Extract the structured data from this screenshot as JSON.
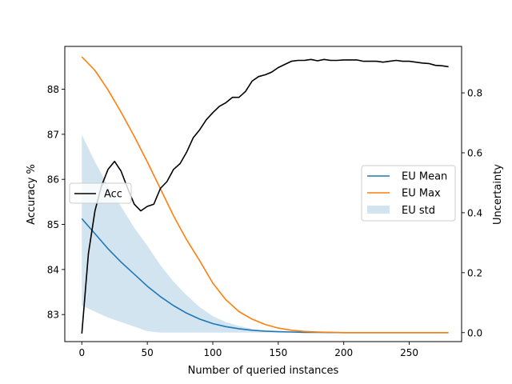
{
  "chart_data": {
    "type": "line",
    "xlabel": "Number of queried instances",
    "ylabel_left": "Accuracy %",
    "ylabel_right": "Uncertainty",
    "xlim": [
      -13,
      290
    ],
    "ylim_left": [
      82.4,
      88.95
    ],
    "ylim_right": [
      -0.03,
      0.955
    ],
    "x_ticks": [
      0,
      50,
      100,
      150,
      200,
      250
    ],
    "y_ticks_left": [
      83,
      84,
      85,
      86,
      87,
      88
    ],
    "y_ticks_right": [
      0.0,
      0.2,
      0.4,
      0.6,
      0.8
    ],
    "legend_left": [
      "Acc"
    ],
    "legend_right": [
      "EU Mean",
      "EU Max",
      "EU std"
    ],
    "colors": {
      "acc": "#000000",
      "eu_mean": "#1f77b4",
      "eu_max": "#ff7f0e",
      "eu_std": "#1f77b4"
    },
    "acc": {
      "name": "Acc",
      "x": [
        0,
        5,
        10,
        15,
        20,
        25,
        30,
        35,
        40,
        45,
        50,
        55,
        60,
        65,
        70,
        75,
        80,
        85,
        90,
        95,
        100,
        105,
        110,
        115,
        120,
        125,
        130,
        135,
        140,
        145,
        150,
        155,
        160,
        165,
        170,
        175,
        180,
        185,
        190,
        195,
        200,
        205,
        210,
        215,
        220,
        225,
        230,
        235,
        240,
        245,
        250,
        255,
        260,
        265,
        270,
        275,
        280
      ],
      "y": [
        82.58,
        84.35,
        85.3,
        85.85,
        86.22,
        86.4,
        86.18,
        85.8,
        85.45,
        85.3,
        85.4,
        85.45,
        85.8,
        85.95,
        86.22,
        86.35,
        86.6,
        86.92,
        87.1,
        87.32,
        87.48,
        87.62,
        87.7,
        87.82,
        87.82,
        87.95,
        88.18,
        88.28,
        88.32,
        88.38,
        88.48,
        88.55,
        88.62,
        88.64,
        88.64,
        88.66,
        88.63,
        88.66,
        88.64,
        88.64,
        88.65,
        88.65,
        88.65,
        88.62,
        88.62,
        88.62,
        88.6,
        88.62,
        88.64,
        88.62,
        88.62,
        88.6,
        88.58,
        88.57,
        88.53,
        88.52,
        88.5
      ]
    },
    "eu_mean": {
      "name": "EU Mean",
      "x": [
        0,
        10,
        20,
        30,
        40,
        50,
        60,
        70,
        80,
        90,
        100,
        110,
        120,
        130,
        140,
        150,
        160,
        170,
        180,
        200,
        220,
        240,
        260,
        280
      ],
      "y": [
        0.38,
        0.33,
        0.28,
        0.235,
        0.195,
        0.155,
        0.12,
        0.09,
        0.065,
        0.045,
        0.03,
        0.02,
        0.013,
        0.008,
        0.005,
        0.003,
        0.002,
        0.001,
        0.001,
        0.0,
        0.0,
        0.0,
        0.0,
        0.0
      ]
    },
    "eu_max": {
      "name": "EU Max",
      "x": [
        0,
        10,
        20,
        30,
        40,
        50,
        60,
        70,
        80,
        90,
        100,
        110,
        120,
        130,
        140,
        150,
        160,
        170,
        180,
        200,
        220,
        240,
        260,
        280
      ],
      "y": [
        0.92,
        0.875,
        0.81,
        0.735,
        0.655,
        0.57,
        0.48,
        0.39,
        0.31,
        0.24,
        0.165,
        0.11,
        0.07,
        0.045,
        0.027,
        0.015,
        0.008,
        0.004,
        0.002,
        0.0,
        0.0,
        0.0,
        0.0,
        0.0
      ]
    },
    "eu_std": {
      "name": "EU std",
      "x": [
        0,
        10,
        20,
        30,
        40,
        50,
        60,
        70,
        80,
        90,
        100,
        110,
        120,
        130,
        140,
        150,
        160,
        170,
        180,
        200,
        220,
        240,
        260,
        280
      ],
      "upper": [
        0.66,
        0.57,
        0.49,
        0.42,
        0.35,
        0.29,
        0.225,
        0.17,
        0.125,
        0.085,
        0.055,
        0.035,
        0.022,
        0.012,
        0.006,
        0.003,
        0.002,
        0.001,
        0.001,
        0.0,
        0.0,
        0.0,
        0.0,
        0.0
      ],
      "lower": [
        0.09,
        0.07,
        0.05,
        0.035,
        0.02,
        0.005,
        0.0,
        0.0,
        0.0,
        0.0,
        0.0,
        0.0,
        0.0,
        0.0,
        0.0,
        0.0,
        0.0,
        0.0,
        0.0,
        0.0,
        0.0,
        0.0,
        0.0,
        0.0
      ]
    }
  }
}
